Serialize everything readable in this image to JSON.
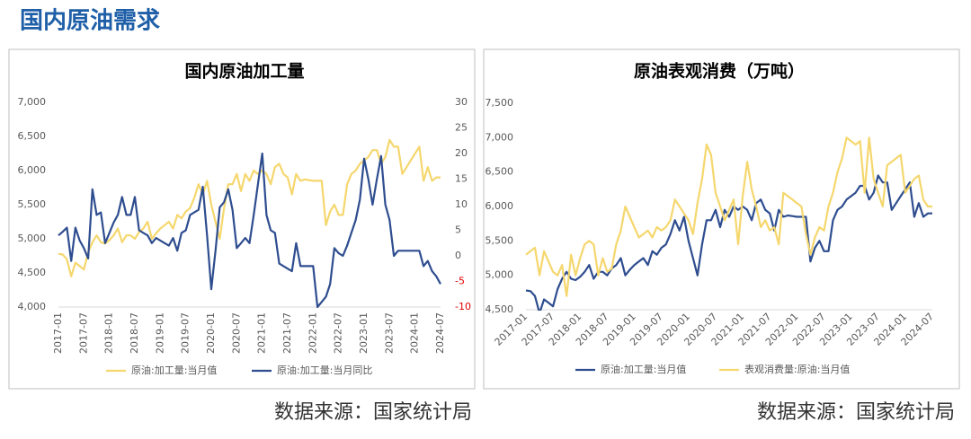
{
  "page_title": "国内原油需求",
  "sources": [
    "数据来源：国家统计局",
    "数据来源：国家统计局"
  ],
  "chart_data": [
    {
      "type": "line",
      "title": "国内原油加工量",
      "categories": [
        "2017-01",
        null,
        null,
        null,
        null,
        null,
        "2017-07",
        null,
        null,
        null,
        null,
        null,
        "2018-01",
        null,
        null,
        null,
        null,
        null,
        "2018-07",
        null,
        null,
        null,
        null,
        null,
        "2019-01",
        null,
        null,
        null,
        null,
        null,
        "2019-07",
        null,
        null,
        null,
        null,
        null,
        "2020-01",
        null,
        null,
        null,
        null,
        null,
        "2020-07",
        null,
        null,
        null,
        null,
        null,
        "2021-01",
        null,
        null,
        null,
        null,
        null,
        "2021-07",
        null,
        null,
        null,
        null,
        null,
        "2022-01",
        null,
        null,
        null,
        null,
        null,
        "2022-07",
        null,
        null,
        null,
        null,
        null,
        "2023-01",
        null,
        null,
        null,
        null,
        null,
        "2023-07",
        null,
        null,
        null,
        null,
        null,
        "2024-01",
        null,
        null,
        null,
        null,
        null,
        "2024-07"
      ],
      "series": [
        {
          "name": "原油:加工量:当月值",
          "color": "#f5d76e",
          "values": [
            4780,
            4770,
            4700,
            4450,
            4650,
            4600,
            4550,
            4800,
            4950,
            5050,
            4950,
            4930,
            4980,
            5050,
            5150,
            4950,
            5050,
            5050,
            5000,
            5100,
            5150,
            5250,
            5000,
            5080,
            5150,
            5200,
            5250,
            5150,
            5350,
            5300,
            5400,
            5450,
            5600,
            5800,
            5650,
            5850,
            5500,
            5250,
            5000,
            5450,
            5800,
            5800,
            5950,
            5700,
            5950,
            5850,
            6000,
            5950,
            6000,
            5950,
            5800,
            6050,
            6100,
            5950,
            5900,
            5650,
            5950,
            5850,
            5870,
            5860,
            5850,
            5850,
            5850,
            5200,
            5400,
            5500,
            5350,
            5350,
            5800,
            5950,
            6000,
            6100,
            6150,
            6200,
            6300,
            6300,
            6100,
            6200,
            6450,
            6350,
            6350,
            5950,
            6050,
            6150,
            6250,
            6350,
            5850,
            6050,
            5850,
            5900,
            5900
          ]
        },
        {
          "name": "原油:加工量:当月同比",
          "color": "#2e4d8f",
          "axis": "y2",
          "values": [
            4,
            4.7,
            5.5,
            -1,
            5.5,
            3,
            1.5,
            -0.5,
            13,
            8,
            8.5,
            2.5,
            4.5,
            6.5,
            8,
            11.5,
            8,
            8,
            11.5,
            5,
            4.5,
            4,
            2.5,
            3.5,
            3,
            2.5,
            2,
            3.5,
            1,
            4.5,
            5,
            8,
            8.5,
            9,
            13.5,
            4,
            -6.5,
            1,
            9.5,
            10.5,
            13,
            9,
            1.5,
            2.5,
            3.5,
            2.5,
            8,
            14,
            20,
            8,
            5,
            4.5,
            -1.5,
            -2,
            -2.5,
            -3,
            2.5,
            -2,
            -2,
            -2,
            -2,
            -10,
            -9,
            -8,
            -5.5,
            1.5,
            0.5,
            0,
            2,
            4.5,
            7,
            11,
            19,
            15,
            10,
            15,
            19.5,
            10,
            7,
            0,
            1,
            1,
            1,
            1,
            1,
            1,
            -2,
            -1,
            -3,
            -4,
            -5.5
          ]
        }
      ],
      "ylim": [
        4000,
        7000
      ],
      "yticks": [
        {
          "value": 4000,
          "label": "4,000"
        },
        {
          "value": 4500,
          "label": "4,500"
        },
        {
          "value": 5000,
          "label": "5,000"
        },
        {
          "value": 5500,
          "label": "5,500"
        },
        {
          "value": 6000,
          "label": "6,000"
        },
        {
          "value": 6500,
          "label": "6,500"
        },
        {
          "value": 7000,
          "label": "7,000"
        }
      ],
      "y2lim": [
        -10,
        30
      ],
      "y2ticks": [
        -10,
        -5,
        0,
        5,
        10,
        15,
        20,
        25,
        30
      ],
      "negative_tick_color": "#e00000",
      "grid": false
    },
    {
      "type": "line",
      "title": "原油表观消费（万吨）",
      "categories": [
        "2017-01",
        null,
        null,
        null,
        null,
        null,
        "2017-07",
        null,
        null,
        null,
        null,
        null,
        "2018-01",
        null,
        null,
        null,
        null,
        null,
        "2018-07",
        null,
        null,
        null,
        null,
        null,
        "2019-01",
        null,
        null,
        null,
        null,
        null,
        "2019-07",
        null,
        null,
        null,
        null,
        null,
        "2020-01",
        null,
        null,
        null,
        null,
        null,
        "2020-07",
        null,
        null,
        null,
        null,
        null,
        "2021-01",
        null,
        null,
        null,
        null,
        null,
        "2021-07",
        null,
        null,
        null,
        null,
        null,
        "2022-01",
        null,
        null,
        null,
        null,
        null,
        "2022-07",
        null,
        null,
        null,
        null,
        null,
        "2023-01",
        null,
        null,
        null,
        null,
        null,
        "2023-07",
        null,
        null,
        null,
        null,
        null,
        "2024-01",
        null,
        null,
        null,
        null,
        null,
        "2024-07"
      ],
      "series": [
        {
          "name": "原油:加工量:当月值",
          "color": "#2e4d8f",
          "values": [
            4780,
            4770,
            4700,
            4450,
            4650,
            4600,
            4550,
            4800,
            4950,
            5050,
            4950,
            4930,
            4980,
            5050,
            5150,
            4950,
            5050,
            5050,
            5000,
            5100,
            5150,
            5250,
            5000,
            5080,
            5150,
            5200,
            5250,
            5150,
            5350,
            5300,
            5400,
            5450,
            5600,
            5800,
            5650,
            5850,
            5500,
            5250,
            5000,
            5450,
            5800,
            5800,
            5950,
            5700,
            5950,
            5850,
            6000,
            5950,
            6000,
            5950,
            5800,
            6050,
            6100,
            5950,
            5900,
            5650,
            5950,
            5850,
            5870,
            5860,
            5850,
            5850,
            5850,
            5200,
            5400,
            5500,
            5350,
            5350,
            5800,
            5950,
            6000,
            6100,
            6150,
            6200,
            6300,
            6300,
            6100,
            6200,
            6450,
            6350,
            6350,
            5950,
            6050,
            6150,
            6250,
            6350,
            5850,
            6050,
            5850,
            5900,
            5900
          ]
        },
        {
          "name": "表观消费量:原油:当月值",
          "color": "#f5d76e",
          "values": [
            5300,
            5350,
            5400,
            5000,
            5350,
            5200,
            5050,
            5000,
            5150,
            4700,
            5300,
            5000,
            5250,
            5450,
            5500,
            5450,
            5000,
            5250,
            5050,
            5100,
            5450,
            5650,
            6000,
            5850,
            5700,
            5550,
            5600,
            5650,
            5550,
            5700,
            5650,
            5700,
            5800,
            6100,
            6000,
            5900,
            5800,
            5600,
            6050,
            6400,
            6900,
            6750,
            6200,
            6000,
            5800,
            5950,
            6100,
            5450,
            6150,
            6650,
            6250,
            6000,
            5700,
            5800,
            5650,
            5700,
            5450,
            6200,
            6150,
            6100,
            6050,
            6000,
            5600,
            5300,
            5550,
            5700,
            5650,
            6000,
            6200,
            6500,
            6700,
            7000,
            6950,
            6900,
            6950,
            6200,
            7000,
            6400,
            6200,
            6000,
            6600,
            6650,
            6700,
            6750,
            6200,
            6300,
            6400,
            6450,
            6100,
            6000,
            6000
          ]
        }
      ],
      "ylim": [
        4500,
        7500
      ],
      "yticks": [
        {
          "value": 4500,
          "label": "4,500"
        },
        {
          "value": 5000,
          "label": "5,000"
        },
        {
          "value": 5500,
          "label": "5,500"
        },
        {
          "value": 6000,
          "label": "6,000"
        },
        {
          "value": 6500,
          "label": "6,500"
        },
        {
          "value": 7000,
          "label": "7,000"
        },
        {
          "value": 7500,
          "label": "7,500"
        }
      ],
      "grid": false
    }
  ]
}
